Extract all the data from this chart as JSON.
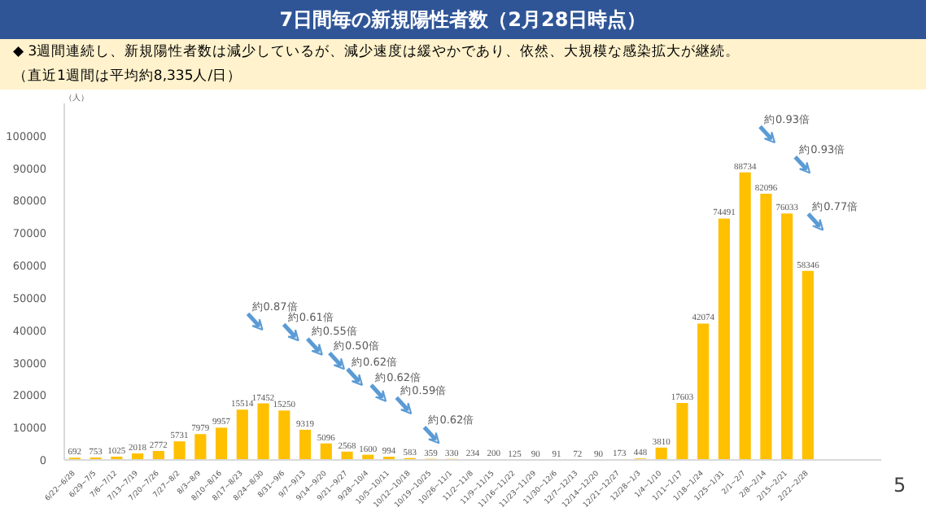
{
  "chart_data": {
    "type": "bar",
    "title": "7日間毎の新規陽性者数（2月28日時点）",
    "subtitle": "◆  3週間連続し、新規陽性者数は減少しているが、減少速度は緩やかであり、依然、大規模な感染拡大が継続。",
    "ylabel": "（人）",
    "categories": [
      "6/22~6/28",
      "6/29~7/5",
      "7/6~7/12",
      "7/13~7/19",
      "7/20~7/26",
      "7/27~8/2",
      "8/3~8/9",
      "8/10~8/16",
      "8/17~8/23",
      "8/24~8/30",
      "8/31~9/6",
      "9/7~9/13",
      "9/14~9/20",
      "9/21~9/27",
      "9/28~10/4",
      "10/5~10/11",
      "10/12~10/18",
      "10/19~10/25",
      "10/26~11/1",
      "11/2~11/8",
      "11/9~11/15",
      "11/16~11/22",
      "11/23~11/29",
      "11/30~12/6",
      "12/7~12/13",
      "12/14~12/20",
      "12/21~12/27",
      "12/28~1/3",
      "1/4~1/10",
      "1/11~1/17",
      "1/18~1/24",
      "1/25~1/31",
      "2/1~2/7",
      "2/8~2/14",
      "2/15~2/21",
      "2/22~2/28"
    ],
    "values": [
      692,
      753,
      1025,
      2018,
      2772,
      5731,
      7979,
      9957,
      15514,
      17452,
      15250,
      9319,
      5096,
      2568,
      1600,
      994,
      583,
      359,
      330,
      234,
      200,
      125,
      90,
      91,
      72,
      90,
      173,
      448,
      3810,
      17603,
      42074,
      74491,
      88734,
      82096,
      76033,
      58346
    ],
    "color": "#ffc000",
    "data_labels": true,
    "ylim": [
      0,
      110000
    ],
    "grid": false,
    "yticks": [
      0,
      10000,
      20000,
      30000,
      40000,
      50000,
      60000,
      70000,
      80000,
      90000,
      100000
    ],
    "annotations": [
      "（直近1週間は平均約8,335人/日）",
      "約0.87倍",
      "約0.61倍",
      "約0.55倍",
      "約0.50倍",
      "約0.62倍",
      "約0.62倍",
      "約0.59倍",
      "約0.62倍",
      "約0.93倍",
      "約0.93倍",
      "約0.77倍",
      "5"
    ]
  }
}
